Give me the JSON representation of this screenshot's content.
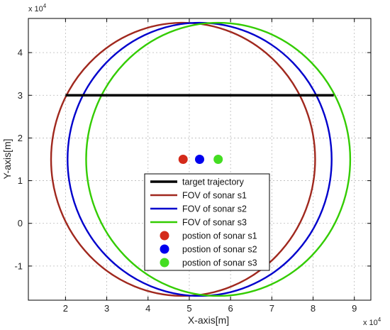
{
  "chart_data": {
    "type": "scatter",
    "xlabel": "X-axis[m]",
    "ylabel": "Y-axis[m]",
    "x_exponent_label": "x 10",
    "x_exponent_power": "4",
    "y_exponent_label": "x 10",
    "y_exponent_power": "4",
    "xlim": [
      11000,
      94000
    ],
    "ylim": [
      -18000,
      48000
    ],
    "xticks": [
      20000,
      30000,
      40000,
      50000,
      60000,
      70000,
      80000,
      90000
    ],
    "xtick_labels": [
      "2",
      "3",
      "4",
      "5",
      "6",
      "7",
      "8",
      "9"
    ],
    "yticks": [
      -10000,
      0,
      10000,
      20000,
      30000,
      40000
    ],
    "ytick_labels": [
      "-1",
      "0",
      "1",
      "2",
      "3",
      "4"
    ],
    "grid": true,
    "legend_position": "bottom-center",
    "series": [
      {
        "name": "target trajectory",
        "kind": "line",
        "color": "#000000",
        "points": [
          [
            20000,
            30000
          ],
          [
            85000,
            30000
          ]
        ]
      },
      {
        "name": "FOV of sonar s1",
        "kind": "circle",
        "color": "#a0281e",
        "center": [
          48500,
          15000
        ],
        "radius": 32000
      },
      {
        "name": "FOV of sonar s2",
        "kind": "circle",
        "color": "#0000cc",
        "center": [
          52500,
          15000
        ],
        "radius": 32000
      },
      {
        "name": "FOV of sonar s3",
        "kind": "circle",
        "color": "#33cc00",
        "center": [
          57000,
          15000
        ],
        "radius": 32000
      },
      {
        "name": "postion of sonar s1",
        "kind": "marker",
        "color": "#d42a1a",
        "points": [
          [
            48500,
            15000
          ]
        ]
      },
      {
        "name": "postion of sonar s2",
        "kind": "marker",
        "color": "#0000ee",
        "points": [
          [
            52500,
            15000
          ]
        ]
      },
      {
        "name": "postion of sonar s3",
        "kind": "marker",
        "color": "#44dd22",
        "points": [
          [
            57000,
            15000
          ]
        ]
      }
    ]
  }
}
